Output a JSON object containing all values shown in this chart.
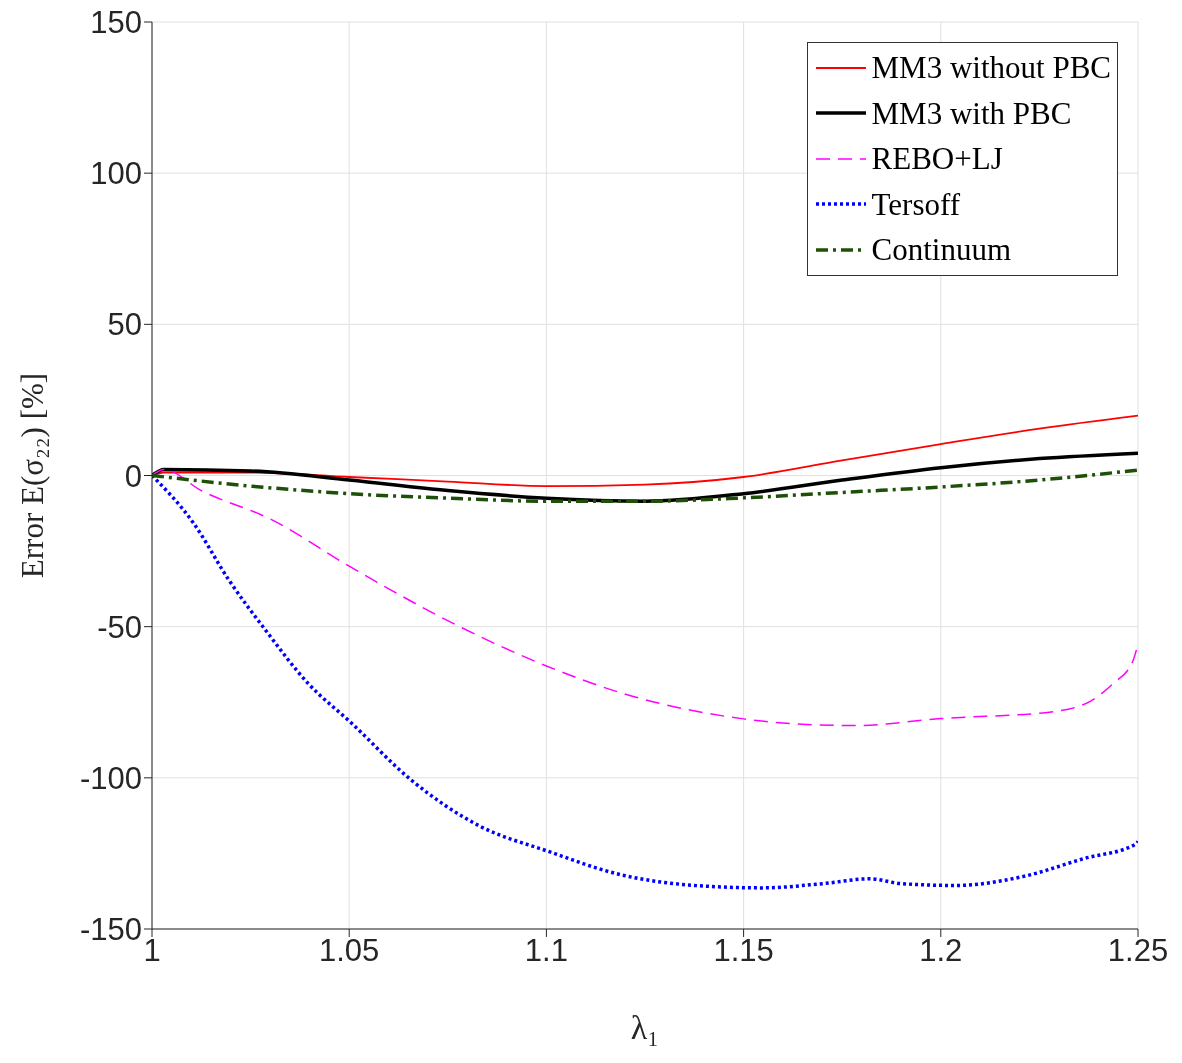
{
  "chart_data": {
    "type": "line",
    "xlabel": "λ₁",
    "ylabel": "Error E(σ₂₂) [%]",
    "xlim": [
      1,
      1.25
    ],
    "xticks": [
      1,
      1.05,
      1.1,
      1.15,
      1.2,
      1.25
    ],
    "ylim": [
      -150,
      150
    ],
    "yticks": [
      -150,
      -100,
      -50,
      0,
      50,
      100,
      150
    ],
    "grid": true,
    "legend": "top right",
    "marker": "none",
    "series": [
      {
        "name": "MM3 without PBC",
        "color": "#ff0000",
        "line_style": "solid",
        "x": [
          1,
          1.003,
          1.025,
          1.05,
          1.075,
          1.1,
          1.125,
          1.15,
          1.175,
          1.2,
          1.225,
          1.25
        ],
        "values": [
          0,
          1,
          1,
          -0.5,
          -2,
          -3.5,
          -3,
          -0.5,
          5,
          10.4,
          15.5,
          19.8
        ]
      },
      {
        "name": "MM3 with PBC",
        "color": "#000000",
        "line_style": "solid",
        "x": [
          1,
          1.003,
          1.025,
          1.05,
          1.075,
          1.1,
          1.125,
          1.15,
          1.175,
          1.2,
          1.225,
          1.25
        ],
        "values": [
          0,
          2,
          1.5,
          -1.5,
          -5,
          -7.5,
          -8.5,
          -6,
          -1.5,
          2.6,
          5.6,
          7.4
        ]
      },
      {
        "name": "REBO+LJ",
        "color": "#ff00ff",
        "line_style": "dashed",
        "x": [
          1,
          1.003,
          1.0125,
          1.03,
          1.05,
          1.078,
          1.1,
          1.1187,
          1.15,
          1.169,
          1.1785,
          1.2,
          1.228,
          1.238,
          1.2437,
          1.2486,
          1.25
        ],
        "values": [
          0,
          2,
          -5,
          -14.4,
          -30,
          -50,
          -63,
          -71.8,
          -80.5,
          -82.5,
          -82.7,
          -80.4,
          -78.2,
          -74.6,
          -68.8,
          -61.7,
          -55.7
        ]
      },
      {
        "name": "Tersoff",
        "color": "#0000ff",
        "line_style": "dotted",
        "x": [
          1,
          1.0105,
          1.0195,
          1.0287,
          1.0396,
          1.0505,
          1.0657,
          1.083,
          1.1002,
          1.1187,
          1.1412,
          1.155,
          1.17,
          1.182,
          1.19,
          1.2038,
          1.221,
          1.2363,
          1.2495,
          1.25
        ],
        "values": [
          0,
          -15.7,
          -34.6,
          -51,
          -68.8,
          -81.8,
          -100.7,
          -115.9,
          -124.2,
          -132,
          -135.9,
          -136.4,
          -135,
          -133.4,
          -135,
          -135.6,
          -132.6,
          -126.7,
          -121.9,
          -121
        ]
      },
      {
        "name": "Continuum",
        "color": "#1e5008",
        "line_style": "dashdot",
        "x": [
          1,
          1.025,
          1.05,
          1.075,
          1.1,
          1.125,
          1.15,
          1.175,
          1.2,
          1.225,
          1.25
        ],
        "values": [
          0,
          -3.5,
          -6,
          -7.5,
          -8.5,
          -8.5,
          -7.4,
          -5.6,
          -3.8,
          -1.5,
          1.8
        ]
      }
    ]
  }
}
